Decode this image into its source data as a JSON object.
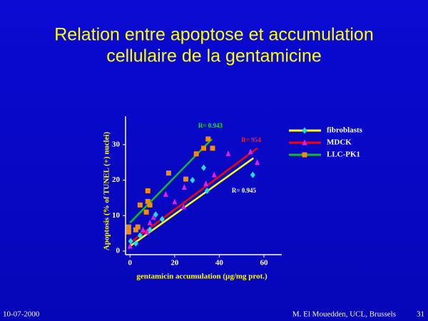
{
  "title": "Relation entre apoptose et accumulation",
  "subtitle": "cellulaire de la gentamicine",
  "footer": {
    "date": "10-07-2000",
    "author": "M. El Mouedden, UCL, Brussels",
    "page": "31"
  },
  "chart_data": {
    "type": "scatter",
    "x_label": "gentamicin accumulation (µg/mg prot.)",
    "y_label": "Apoptosis   (% of TUNEL (+) nuclei)",
    "xlim": [
      -2,
      68
    ],
    "ylim": [
      -1,
      38
    ],
    "xticks": [
      0,
      20,
      40,
      60
    ],
    "yticks": [
      0,
      10,
      20,
      30
    ],
    "legend": "right",
    "series": [
      {
        "name": "fibroblasts",
        "color": "#ffff00",
        "marker": "diamond",
        "marker_color": "#22e0e0",
        "x": [
          0.3,
          2.6,
          4.5,
          8.9,
          11.5,
          14.4,
          28,
          33,
          34.5,
          55
        ],
        "values": [
          2.8,
          2.2,
          4.4,
          6,
          10.3,
          9,
          20,
          23.5,
          17,
          21.5
        ],
        "fit": {
          "x": [
            0,
            55.3
          ],
          "y": [
            1.4,
            26.2
          ]
        },
        "annotation": "R= 0.945",
        "annotation_color": "#ffffff"
      },
      {
        "name": "MDCK",
        "color": "#ff0000",
        "marker": "triangle",
        "marker_color": "#e020e0",
        "x": [
          0,
          3.5,
          5.8,
          7.7,
          8.9,
          10.5,
          16,
          20,
          24,
          24.3,
          34,
          37.7,
          44,
          54,
          57
        ],
        "values": [
          1.4,
          6.8,
          6,
          5.4,
          8,
          9.5,
          16,
          13.9,
          12.5,
          18,
          19,
          21.5,
          27.5,
          28,
          25
        ],
        "fit": {
          "x": [
            0,
            57
          ],
          "y": [
            2.4,
            29
          ]
        },
        "annotation": "R= 954",
        "annotation_color": "#ff2020"
      },
      {
        "name": "LLC-PK1",
        "color": "#10c020",
        "marker": "square",
        "marker_color": "#f08c10",
        "x": [
          -0.6,
          -0.6,
          3.5,
          2.6,
          4.5,
          8,
          8,
          8.9,
          7.3,
          17.3,
          25,
          29.7,
          33,
          35,
          37
        ],
        "values": [
          6.8,
          5.4,
          6.8,
          6,
          13,
          17,
          14,
          13,
          11,
          22,
          20.3,
          27.4,
          29,
          31.6,
          29
        ],
        "fit": {
          "x": [
            0,
            36.7
          ],
          "y": [
            8,
            31.6
          ]
        },
        "annotation": "R= 0.943",
        "annotation_color": "#20e020"
      }
    ]
  }
}
